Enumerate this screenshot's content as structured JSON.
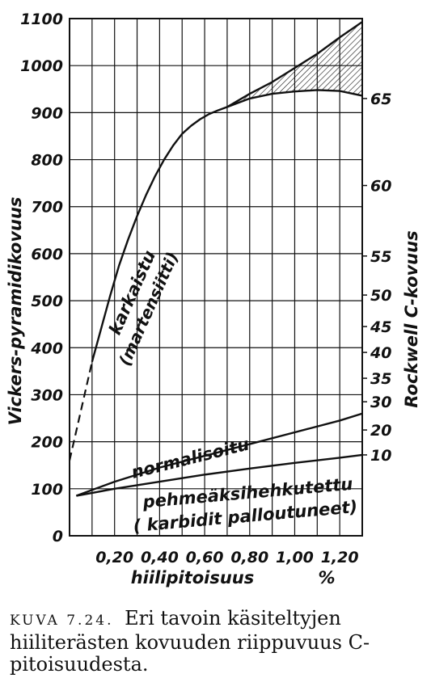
{
  "chart_data": {
    "type": "line",
    "xlabel": "hiilipitoisuus",
    "xunit": "%",
    "ylabel": "Vickers-pyramidikovuus",
    "y2label": "Rockwell C-kovuus",
    "xlim": [
      0,
      1.3
    ],
    "ylim": [
      0,
      1100
    ],
    "x_ticks": [
      "0,20",
      "0,40",
      "0,60",
      "0,80",
      "1,00",
      "1,20"
    ],
    "y_ticks": [
      "0",
      "100",
      "200",
      "300",
      "400",
      "500",
      "600",
      "700",
      "800",
      "900",
      "1000",
      "1100"
    ],
    "y2_ticks": [
      {
        "label": "10",
        "vickers": 172
      },
      {
        "label": "20",
        "vickers": 225
      },
      {
        "label": "30",
        "vickers": 285
      },
      {
        "label": "35",
        "vickers": 335
      },
      {
        "label": "40",
        "vickers": 390
      },
      {
        "label": "45",
        "vickers": 445
      },
      {
        "label": "50",
        "vickers": 512
      },
      {
        "label": "55",
        "vickers": 595
      },
      {
        "label": "60",
        "vickers": 745
      },
      {
        "label": "65",
        "vickers": 930
      }
    ],
    "series": [
      {
        "name": "karkaistu (martensiitti)",
        "dashed_part": [
          [
            0.0,
            160
          ],
          [
            0.1,
            370
          ]
        ],
        "x": [
          0.1,
          0.14,
          0.18,
          0.22,
          0.26,
          0.3,
          0.34,
          0.38,
          0.42,
          0.46,
          0.5,
          0.54,
          0.58,
          0.62,
          0.66,
          0.7
        ],
        "y": [
          370,
          440,
          510,
          575,
          630,
          680,
          725,
          765,
          800,
          830,
          855,
          872,
          886,
          897,
          905,
          912
        ]
      },
      {
        "name": "upper branch",
        "x": [
          0.7,
          0.8,
          0.9,
          1.0,
          1.1,
          1.2,
          1.3
        ],
        "y": [
          912,
          940,
          965,
          995,
          1025,
          1060,
          1093
        ]
      },
      {
        "name": "lower branch",
        "x": [
          0.7,
          0.8,
          0.9,
          1.0,
          1.1,
          1.2,
          1.3
        ],
        "y": [
          912,
          930,
          940,
          945,
          948,
          946,
          936
        ]
      },
      {
        "name": "normalisoitu",
        "x": [
          0.03,
          0.2,
          0.4,
          0.6,
          0.8,
          1.0,
          1.2,
          1.3
        ],
        "y": [
          85,
          115,
          145,
          170,
          195,
          220,
          245,
          260
        ]
      },
      {
        "name": "pehmeäksihehkutettu (karbidit palloutuneet)",
        "x": [
          0.03,
          0.2,
          0.4,
          0.6,
          0.8,
          1.0,
          1.2,
          1.3
        ],
        "y": [
          85,
          100,
          115,
          130,
          143,
          155,
          166,
          172
        ]
      }
    ]
  },
  "labels": {
    "karkaistu": "karkaistu",
    "martensiitti": "(martensiitti)",
    "normalisoitu": "normalisoitu",
    "pehmea": "pehmeäksihehkutettu",
    "karbidit": "( karbidit palloutuneet)"
  },
  "caption": {
    "number": "KUVA 7.24.",
    "text": "Eri tavoin käsiteltyjen hiiliterästen kovuuden riippuvuus C-pitoisuudesta."
  }
}
